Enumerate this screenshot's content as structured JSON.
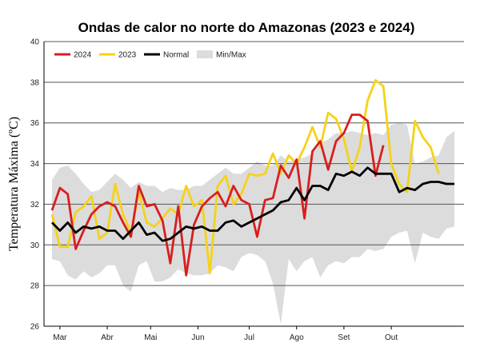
{
  "chart_data": {
    "type": "line",
    "title": "Ondas de calor no norte do Amazonas (2023 e 2024)",
    "xlabel": "",
    "ylabel": "Temperatura Máxima (ºC)",
    "ylim": [
      26,
      40
    ],
    "yticks": [
      "26",
      "28",
      "30",
      "32",
      "34",
      "36",
      "38",
      "40"
    ],
    "xlim": [
      0,
      52
    ],
    "month_ticks": [
      {
        "label": "Mar",
        "x": 1
      },
      {
        "label": "Abr",
        "x": 7
      },
      {
        "label": "Mai",
        "x": 12.5
      },
      {
        "label": "Jun",
        "x": 18.5
      },
      {
        "label": "Jul",
        "x": 25
      },
      {
        "label": "Ago",
        "x": 31
      },
      {
        "label": "Set",
        "x": 37
      },
      {
        "label": "Out",
        "x": 43
      }
    ],
    "grid": true,
    "legend_position": "top-left",
    "legend": [
      "2024",
      "2023",
      "Normal",
      "Min/Max"
    ],
    "colors": {
      "2024": "#d81e1e",
      "2023": "#f5d21a",
      "Normal": "#000000",
      "Min/Max": "#dcdcdc"
    },
    "band": {
      "name": "Min/Max",
      "x": [
        0,
        1,
        2,
        3,
        4,
        5,
        6,
        7,
        8,
        9,
        10,
        11,
        12,
        13,
        14,
        15,
        16,
        17,
        18,
        19,
        20,
        21,
        22,
        23,
        24,
        25,
        26,
        27,
        28,
        29,
        30,
        31,
        32,
        33,
        34,
        35,
        36,
        37,
        38,
        39,
        40,
        41,
        42,
        43,
        44,
        45,
        46,
        47,
        48,
        49,
        50,
        51
      ],
      "lower": [
        29.3,
        29.2,
        28.5,
        28.3,
        28.7,
        28.4,
        28.6,
        29.0,
        29.0,
        28.0,
        27.7,
        29.0,
        29.2,
        28.2,
        28.2,
        28.4,
        28.8,
        28.6,
        28.5,
        28.5,
        28.6,
        29.0,
        28.9,
        28.7,
        29.4,
        29.6,
        29.5,
        29.2,
        28.1,
        26.1,
        29.3,
        28.7,
        29.2,
        29.4,
        28.4,
        29.0,
        29.2,
        29.1,
        29.4,
        29.4,
        29.8,
        29.7,
        29.8,
        30.4,
        30.6,
        30.7,
        29.1,
        30.6,
        30.4,
        30.3,
        30.8,
        30.9
      ],
      "upper": [
        33.2,
        33.8,
        33.9,
        33.5,
        33.0,
        32.6,
        32.7,
        33.1,
        33.5,
        33.2,
        32.8,
        33.1,
        32.9,
        32.9,
        32.6,
        32.8,
        32.7,
        32.7,
        32.9,
        32.9,
        33.2,
        33.5,
        33.8,
        33.5,
        33.5,
        33.8,
        34.1,
        33.9,
        33.9,
        34.4,
        34.1,
        34.2,
        34.3,
        34.5,
        35.0,
        35.2,
        35.5,
        35.5,
        35.6,
        35.5,
        35.4,
        35.5,
        35.4,
        35.9,
        36.0,
        35.9,
        34.0,
        34.1,
        34.3,
        34.4,
        35.3,
        35.6
      ]
    },
    "series": [
      {
        "name": "2024",
        "x": [
          0,
          1,
          2,
          3,
          4,
          5,
          6,
          7,
          8,
          9,
          10,
          11,
          12,
          13,
          14,
          15,
          16,
          17,
          18,
          19,
          20,
          21,
          22,
          23,
          24,
          25,
          26,
          27,
          28,
          29,
          30,
          31,
          32,
          33,
          34,
          35,
          36,
          37,
          38,
          39,
          40,
          41,
          42
        ],
        "values": [
          31.7,
          32.8,
          32.5,
          29.8,
          30.7,
          31.5,
          31.9,
          32.1,
          31.9,
          31.1,
          30.4,
          32.9,
          31.9,
          32.0,
          31.2,
          29.1,
          31.9,
          28.5,
          31.0,
          31.9,
          32.3,
          32.6,
          31.9,
          32.9,
          32.2,
          32.0,
          30.4,
          32.2,
          32.3,
          33.9,
          33.3,
          34.2,
          31.3,
          34.6,
          35.1,
          33.7,
          35.1,
          35.5,
          36.4,
          36.4,
          36.1,
          33.4,
          34.9
        ]
      },
      {
        "name": "2023",
        "x": [
          0,
          1,
          2,
          3,
          4,
          5,
          6,
          7,
          8,
          9,
          10,
          11,
          12,
          13,
          14,
          15,
          16,
          17,
          18,
          19,
          20,
          21,
          22,
          23,
          24,
          25,
          26,
          27,
          28,
          29,
          30,
          31,
          32,
          33,
          34,
          35,
          36,
          37,
          38,
          39,
          40,
          41,
          42,
          43,
          44,
          45,
          46,
          47,
          48,
          49
        ],
        "values": [
          31.5,
          29.9,
          29.9,
          31.6,
          31.9,
          32.4,
          30.3,
          30.6,
          33.0,
          31.5,
          30.6,
          32.6,
          31.1,
          30.9,
          31.3,
          31.8,
          31.5,
          32.9,
          31.9,
          32.2,
          28.6,
          32.9,
          33.4,
          32.0,
          32.5,
          33.5,
          33.4,
          33.5,
          34.5,
          33.5,
          34.4,
          34.0,
          34.8,
          35.8,
          34.8,
          36.5,
          36.2,
          35.2,
          33.6,
          34.8,
          37.1,
          38.1,
          37.8,
          34.0,
          33.0,
          32.6,
          36.1,
          35.3,
          34.8,
          33.5
        ]
      },
      {
        "name": "Normal",
        "x": [
          0,
          1,
          2,
          3,
          4,
          5,
          6,
          7,
          8,
          9,
          10,
          11,
          12,
          13,
          14,
          15,
          16,
          17,
          18,
          19,
          20,
          21,
          22,
          23,
          24,
          25,
          26,
          27,
          28,
          29,
          30,
          31,
          32,
          33,
          34,
          35,
          36,
          37,
          38,
          39,
          40,
          41,
          42,
          43,
          44,
          45,
          46,
          47,
          48,
          49,
          50,
          51
        ],
        "values": [
          31.1,
          30.7,
          31.1,
          30.6,
          30.9,
          30.8,
          30.9,
          30.7,
          30.7,
          30.3,
          30.7,
          31.1,
          30.5,
          30.6,
          30.2,
          30.3,
          30.6,
          30.9,
          30.8,
          30.9,
          30.7,
          30.7,
          31.1,
          31.2,
          30.9,
          31.1,
          31.3,
          31.5,
          31.7,
          32.1,
          32.2,
          32.8,
          32.2,
          32.9,
          32.9,
          32.7,
          33.5,
          33.4,
          33.6,
          33.4,
          33.8,
          33.5,
          33.5,
          33.5,
          32.6,
          32.8,
          32.7,
          33.0,
          33.1,
          33.1,
          33.0,
          33.0
        ]
      }
    ]
  }
}
